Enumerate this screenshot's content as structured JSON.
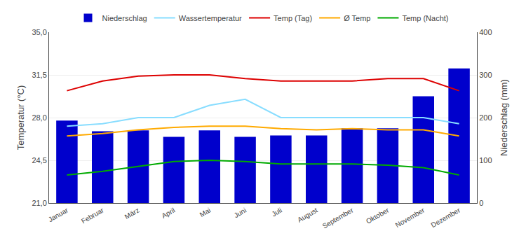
{
  "chart_data": {
    "type": "line",
    "categories": [
      "Januar",
      "Februar",
      "März",
      "April",
      "Mai",
      "Juni",
      "Juli",
      "August",
      "September",
      "Oktober",
      "November",
      "Dezember"
    ],
    "series": [
      {
        "name": "Niederschlag",
        "type": "bar",
        "axis": "y2",
        "color": "#0000cc",
        "values": [
          193,
          168,
          170,
          155,
          170,
          155,
          158,
          158,
          175,
          175,
          250,
          315
        ]
      },
      {
        "name": "Wassertemperatur",
        "type": "line",
        "color": "#88ddff",
        "values": [
          27.3,
          27.5,
          28.0,
          28.0,
          29.0,
          29.5,
          28.0,
          28.0,
          28.0,
          28.0,
          28.0,
          27.5
        ]
      },
      {
        "name": "Temp (Tag)",
        "type": "line",
        "color": "#dd0000",
        "values": [
          30.2,
          31.0,
          31.4,
          31.5,
          31.5,
          31.2,
          31.0,
          31.0,
          31.0,
          31.2,
          31.2,
          30.2
        ]
      },
      {
        "name": "Ø Temp",
        "type": "line",
        "color": "#ffaa00",
        "values": [
          26.5,
          26.7,
          27.0,
          27.2,
          27.3,
          27.3,
          27.1,
          27.0,
          27.1,
          27.0,
          27.0,
          26.5
        ]
      },
      {
        "name": "Temp (Nacht)",
        "type": "line",
        "color": "#00aa00",
        "values": [
          23.3,
          23.6,
          24.0,
          24.4,
          24.5,
          24.4,
          24.2,
          24.2,
          24.2,
          24.1,
          23.9,
          23.3
        ]
      }
    ],
    "ylabel": "Temperatur (°C)",
    "y2label": "Niederschlag (mm)",
    "ylim": [
      21.0,
      35.0
    ],
    "yticks": [
      {
        "value": 21.0,
        "label": "21,0"
      },
      {
        "value": 24.5,
        "label": "24,5"
      },
      {
        "value": 28.0,
        "label": "28,0"
      },
      {
        "value": 31.5,
        "label": "31,5"
      },
      {
        "value": 35.0,
        "label": "35,0"
      }
    ],
    "y2lim": [
      0,
      400
    ],
    "y2ticks": [
      0,
      100,
      200,
      300,
      400
    ],
    "grid": true,
    "legend": "top"
  }
}
